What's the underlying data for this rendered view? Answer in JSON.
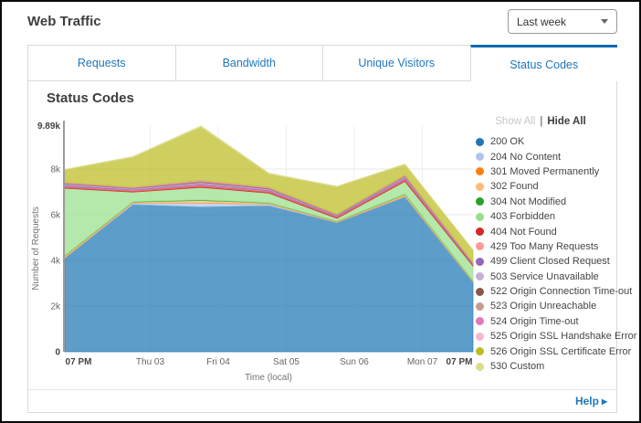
{
  "header": {
    "title": "Web Traffic",
    "range_selector": {
      "value": "Last week"
    }
  },
  "tabs": [
    {
      "label": "Requests",
      "active": false
    },
    {
      "label": "Bandwidth",
      "active": false
    },
    {
      "label": "Unique Visitors",
      "active": false
    },
    {
      "label": "Status Codes",
      "active": true
    }
  ],
  "legend": {
    "show_all": "Show All",
    "divider": "|",
    "hide_all": "Hide All"
  },
  "footer": {
    "help_label": "Help",
    "help_arrow": "▸"
  },
  "colors": {
    "accent_blue": "#2078bc",
    "active_tab_border": "#0f6ab4"
  },
  "chart_data": {
    "type": "area",
    "stacked": true,
    "title": "Status Codes",
    "xlabel": "Time (local)",
    "ylabel": "Number of Requests",
    "x_ticks": [
      "07 PM",
      "Thu 03",
      "Fri 04",
      "Sat 05",
      "Sun 06",
      "Mon 07",
      "07 PM"
    ],
    "y_ticks": [
      "0",
      "2k",
      "4k",
      "6k",
      "8k"
    ],
    "y_max_label": "9.89k",
    "ylim": [
      0,
      9890
    ],
    "grid": true,
    "legend_position": "right",
    "fill_opacity": 0.72,
    "series": [
      {
        "code": "200",
        "name": "200 OK",
        "color": "#1f77b4",
        "values": [
          4100,
          6450,
          6350,
          6400,
          5650,
          6780,
          3050
        ]
      },
      {
        "code": "204",
        "name": "204 No Content",
        "color": "#aec7e8",
        "values": [
          10,
          60,
          160,
          60,
          15,
          30,
          10
        ]
      },
      {
        "code": "301",
        "name": "301 Moved Permanently",
        "color": "#ff7f0e",
        "values": [
          15,
          10,
          15,
          10,
          10,
          15,
          10
        ]
      },
      {
        "code": "302",
        "name": "302 Found",
        "color": "#ffbb78",
        "values": [
          60,
          35,
          95,
          40,
          25,
          60,
          30
        ]
      },
      {
        "code": "304",
        "name": "304 Not Modified",
        "color": "#2ca02c",
        "values": [
          20,
          15,
          25,
          15,
          10,
          20,
          10
        ]
      },
      {
        "code": "403",
        "name": "403 Forbidden",
        "color": "#98df8a",
        "values": [
          2950,
          420,
          550,
          420,
          130,
          550,
          640
        ]
      },
      {
        "code": "404",
        "name": "404 Not Found",
        "color": "#d62728",
        "values": [
          70,
          60,
          85,
          70,
          60,
          90,
          55
        ]
      },
      {
        "code": "429",
        "name": "429 Too Many Requests",
        "color": "#ff9896",
        "values": [
          20,
          20,
          30,
          25,
          15,
          25,
          12
        ]
      },
      {
        "code": "499",
        "name": "499 Client Closed Request",
        "color": "#9467bd",
        "values": [
          50,
          40,
          55,
          45,
          30,
          50,
          25
        ]
      },
      {
        "code": "503",
        "name": "503 Service Unavailable",
        "color": "#c5b0d5",
        "values": [
          40,
          35,
          45,
          40,
          25,
          40,
          20
        ]
      },
      {
        "code": "522",
        "name": "522 Origin Connection Time-out",
        "color": "#8c564b",
        "values": [
          25,
          20,
          30,
          25,
          15,
          25,
          12
        ]
      },
      {
        "code": "523",
        "name": "523 Origin Unreachable",
        "color": "#c49c94",
        "values": [
          15,
          15,
          20,
          15,
          10,
          15,
          8
        ]
      },
      {
        "code": "524",
        "name": "524 Origin Time-out",
        "color": "#e377c2",
        "values": [
          20,
          15,
          25,
          20,
          12,
          20,
          10
        ]
      },
      {
        "code": "525",
        "name": "525 Origin SSL Handshake Error",
        "color": "#f7b6d2",
        "values": [
          15,
          12,
          20,
          15,
          10,
          15,
          8
        ]
      },
      {
        "code": "526",
        "name": "526 Origin SSL Certificate Error",
        "color": "#bcbd22",
        "values": [
          550,
          1300,
          2330,
          580,
          1200,
          450,
          550
        ]
      },
      {
        "code": "530",
        "name": "530 Custom",
        "color": "#dbdb8d",
        "values": [
          30,
          40,
          60,
          40,
          30,
          40,
          20
        ]
      }
    ]
  }
}
